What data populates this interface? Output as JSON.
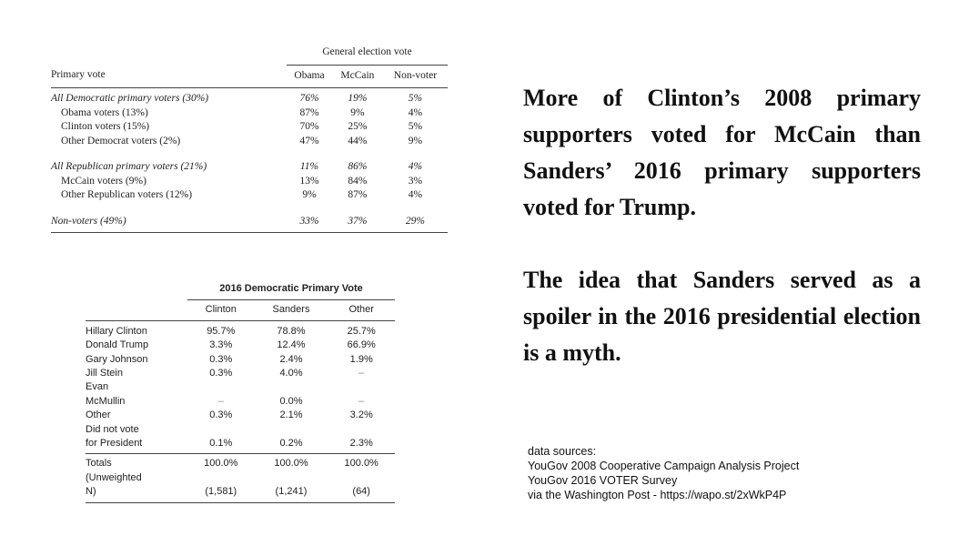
{
  "table_2008": {
    "super_header": "General election vote",
    "row_header": "Primary vote",
    "columns": [
      "Obama",
      "McCain",
      "Non-voter"
    ],
    "groups": [
      {
        "label": "All Democratic primary voters (30%)",
        "values": [
          "76%",
          "19%",
          "5%"
        ],
        "rows": [
          {
            "label": "Obama voters (13%)",
            "values": [
              "87%",
              "9%",
              "4%"
            ]
          },
          {
            "label": "Clinton voters (15%)",
            "values": [
              "70%",
              "25%",
              "5%"
            ]
          },
          {
            "label": "Other Democrat voters (2%)",
            "values": [
              "47%",
              "44%",
              "9%"
            ]
          }
        ]
      },
      {
        "label": "All Republican primary voters (21%)",
        "values": [
          "11%",
          "86%",
          "4%"
        ],
        "rows": [
          {
            "label": "McCain voters (9%)",
            "values": [
              "13%",
              "84%",
              "3%"
            ]
          },
          {
            "label": "Other Republican voters (12%)",
            "values": [
              "9%",
              "87%",
              "4%"
            ]
          }
        ]
      },
      {
        "label": "Non-voters (49%)",
        "values": [
          "33%",
          "37%",
          "29%"
        ],
        "rows": []
      }
    ]
  },
  "table_2016": {
    "title": "2016 Democratic Primary Vote",
    "columns": [
      "Clinton",
      "Sanders",
      "Other"
    ],
    "rows": [
      {
        "label_lines": [
          "Hillary Clinton"
        ],
        "values": [
          "95.7%",
          "78.8%",
          "25.7%"
        ]
      },
      {
        "label_lines": [
          "Donald Trump"
        ],
        "values": [
          "3.3%",
          "12.4%",
          "66.9%"
        ]
      },
      {
        "label_lines": [
          "Gary Johnson"
        ],
        "values": [
          "0.3%",
          "2.4%",
          "1.9%"
        ]
      },
      {
        "label_lines": [
          "Jill Stein"
        ],
        "values": [
          "0.3%",
          "4.0%",
          "–"
        ]
      },
      {
        "label_lines": [
          "Evan",
          "McMullin"
        ],
        "values": [
          "–",
          "0.0%",
          "–"
        ]
      },
      {
        "label_lines": [
          "Other"
        ],
        "values": [
          "0.3%",
          "2.1%",
          "3.2%"
        ]
      },
      {
        "label_lines": [
          "Did not vote",
          "for President"
        ],
        "values": [
          "0.1%",
          "0.2%",
          "2.3%"
        ]
      }
    ],
    "totals": {
      "label_lines": [
        "Totals",
        "(Unweighted",
        "N)"
      ],
      "values": [
        "100.0%",
        "100.0%",
        "100.0%"
      ],
      "n_values": [
        "(1,581)",
        "(1,241)",
        "(64)"
      ]
    }
  },
  "headline": {
    "paragraph1": "More of Clinton’s 2008 primary supporters voted for McCain than Sanders’ 2016 primary supporters voted for Trump.",
    "paragraph2": "The idea that Sanders served as a spoiler in the 2016 presidential election is a myth."
  },
  "sources": {
    "lines": [
      "data sources:",
      "YouGov 2008 Cooperative Campaign Analysis Project",
      "YouGov 2016 VOTER Survey",
      "via the Washington Post - https://wapo.st/2xWkP4P"
    ]
  }
}
